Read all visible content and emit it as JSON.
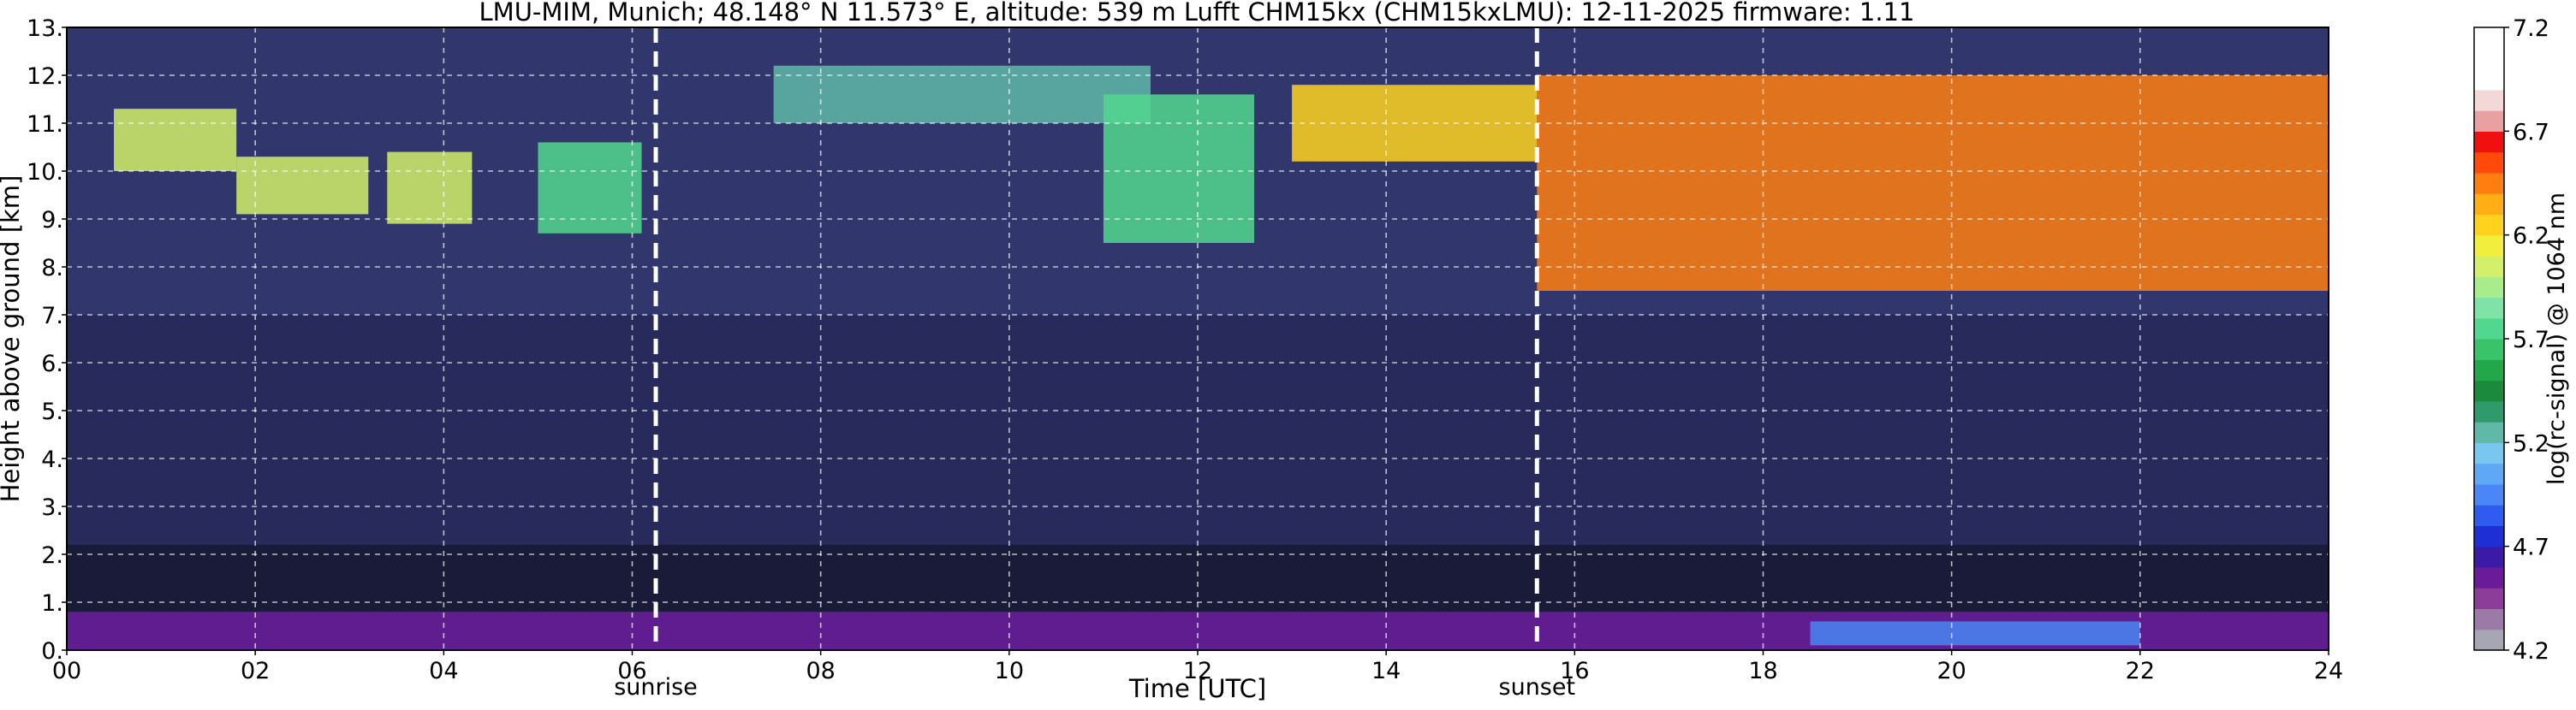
{
  "chart_data": {
    "type": "heatmap",
    "title": "LMU-MIM, Munich; 48.148° N 11.573° E, altitude: 539 m    Lufft CHM15kx (CHM15kxLMU): 12-11-2025    firmware: 1.11",
    "xlabel": "Time [UTC]",
    "ylabel": "Height above ground [km]",
    "xlim": [
      0,
      24
    ],
    "ylim": [
      0,
      13
    ],
    "x_ticks": [
      "00",
      "02",
      "04",
      "06",
      "08",
      "10",
      "12",
      "14",
      "16",
      "18",
      "20",
      "22",
      "24"
    ],
    "y_ticks": [
      "0.",
      "1.",
      "2.",
      "3.",
      "4.",
      "5.",
      "6.",
      "7.",
      "8.",
      "9.",
      "10.",
      "11.",
      "12.",
      "13."
    ],
    "grid": true,
    "markers": [
      {
        "label": "sunrise",
        "x": 6.25
      },
      {
        "label": "sunset",
        "x": 15.6
      }
    ],
    "colorbar": {
      "label": "log(rc-signal) @ 1064 nm",
      "range": [
        4.2,
        7.2
      ],
      "ticks": [
        "4.2",
        "4.7",
        "5.2",
        "5.7",
        "6.2",
        "6.7",
        "7.2"
      ],
      "colors": [
        "#a7a7b4",
        "#9c7aa8",
        "#8b3d99",
        "#6a1b9a",
        "#3b1aa8",
        "#1f2fd6",
        "#2f5bf0",
        "#4a86f5",
        "#5fa8f5",
        "#79c6ee",
        "#5fb8a8",
        "#2f9a6c",
        "#1c8a3c",
        "#22a84a",
        "#39c46a",
        "#52d78e",
        "#7fe3a8",
        "#a8ec8c",
        "#d4f06a",
        "#f2ee3c",
        "#ffd21e",
        "#ffae14",
        "#ff7e10",
        "#ff4a0a",
        "#f01010",
        "#e8a0a0",
        "#f4d8d8",
        "#ffffff",
        "#ffffff",
        "#ffffff"
      ]
    },
    "regions": [
      {
        "x": [
          0.5,
          1.8
        ],
        "y": [
          10.0,
          11.3
        ],
        "v": 6.1
      },
      {
        "x": [
          1.8,
          3.2
        ],
        "y": [
          9.1,
          10.3
        ],
        "v": 6.0
      },
      {
        "x": [
          3.4,
          4.3
        ],
        "y": [
          8.9,
          10.4
        ],
        "v": 6.0
      },
      {
        "x": [
          5.0,
          6.1
        ],
        "y": [
          8.7,
          10.6
        ],
        "v": 5.8
      },
      {
        "x": [
          7.5,
          11.5
        ],
        "y": [
          11.0,
          12.2
        ],
        "v": 5.3
      },
      {
        "x": [
          11.0,
          12.6
        ],
        "y": [
          8.5,
          11.6
        ],
        "v": 5.8
      },
      {
        "x": [
          13.0,
          15.6
        ],
        "y": [
          10.2,
          11.8
        ],
        "v": 6.3
      },
      {
        "x": [
          15.6,
          24.0
        ],
        "y": [
          7.5,
          12.0
        ],
        "v": 6.4
      },
      {
        "x": [
          0.0,
          24.0
        ],
        "y": [
          0.0,
          0.8
        ],
        "v": 4.6
      },
      {
        "x": [
          18.5,
          22.0
        ],
        "y": [
          0.1,
          0.6
        ],
        "v": 4.9
      }
    ]
  }
}
